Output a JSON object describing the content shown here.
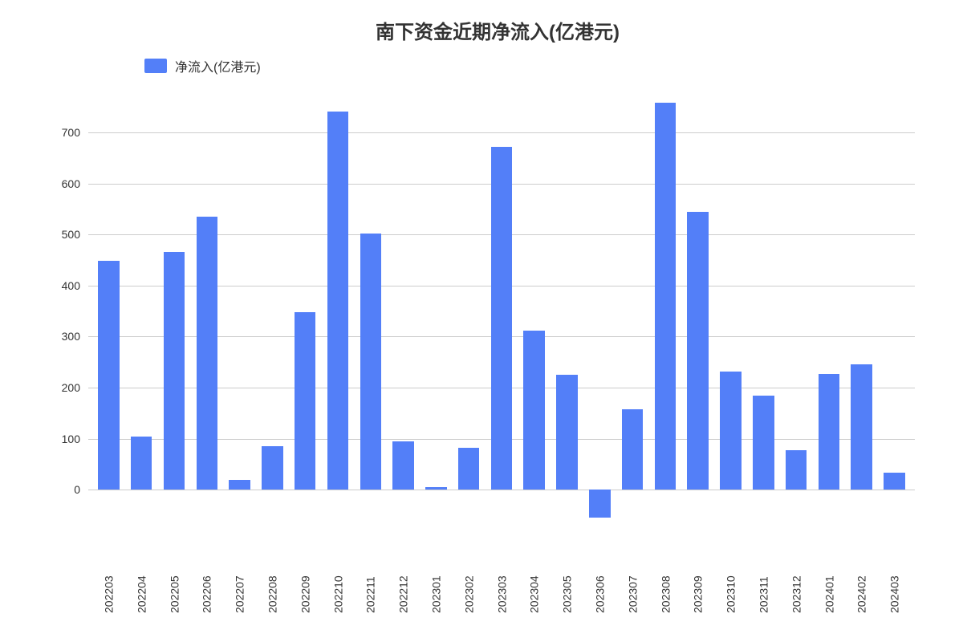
{
  "chart": {
    "type": "bar",
    "title": "南下资金近期净流入(亿港元)",
    "title_fontsize": 24,
    "legend_label": "净流入(亿港元)",
    "legend_fontsize": 16,
    "bar_color": "#537ff8",
    "background_color": "#ffffff",
    "grid_color": "#cccccc",
    "axis_fontsize": 14,
    "bar_width": 0.65,
    "y_axis": {
      "min": -100,
      "max": 780,
      "ticks": [
        0,
        100,
        200,
        300,
        400,
        500,
        600,
        700
      ],
      "grid_at_ticks": true
    },
    "categories": [
      "202203",
      "202204",
      "202205",
      "202206",
      "202207",
      "202208",
      "202209",
      "202210",
      "202211",
      "202212",
      "202301",
      "202302",
      "202303",
      "202304",
      "202305",
      "202306",
      "202307",
      "202308",
      "202309",
      "202310",
      "202311",
      "202312",
      "202401",
      "202402",
      "202403"
    ],
    "values": [
      448,
      105,
      465,
      535,
      20,
      85,
      348,
      740,
      502,
      95,
      5,
      82,
      672,
      312,
      225,
      -55,
      158,
      758,
      545,
      232,
      184,
      78,
      227,
      246,
      33
    ]
  }
}
